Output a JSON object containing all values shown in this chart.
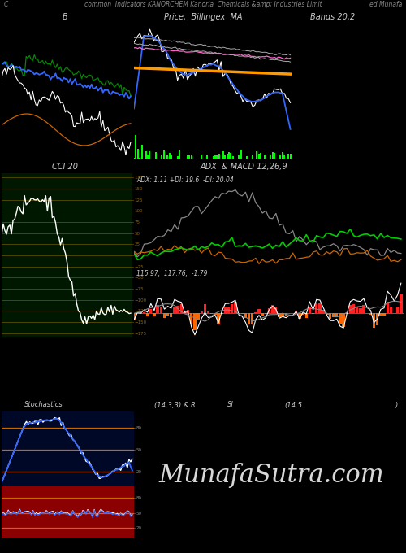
{
  "title_top": "common  Indicators KANORCHEM Kanoria  Chemicals &amp; Industries Limit",
  "title_left": "C",
  "title_right": "ed Munafa",
  "watermark": "MunafaSutra.com",
  "bg_color": "#000000",
  "panel1_title": "B",
  "panel2_title": "Price,  Billingex  MA",
  "panel3_title": "Bands 20,2",
  "panel4_title": "CCI 20",
  "panel5_title": "ADX  & MACD 12,26,9",
  "panel5_subtitle": "ADX: 1.11 +DI: 19.6  -DI: 20.04",
  "panel5_values": "115.97,  117.76,  -1.79",
  "panel6_title": "Stochastics",
  "panel6_subtitle": "(14,3,3) & R",
  "panel7_title": "SI",
  "panel7_subtitle": "(14,5",
  "panel7_suffix": ")"
}
